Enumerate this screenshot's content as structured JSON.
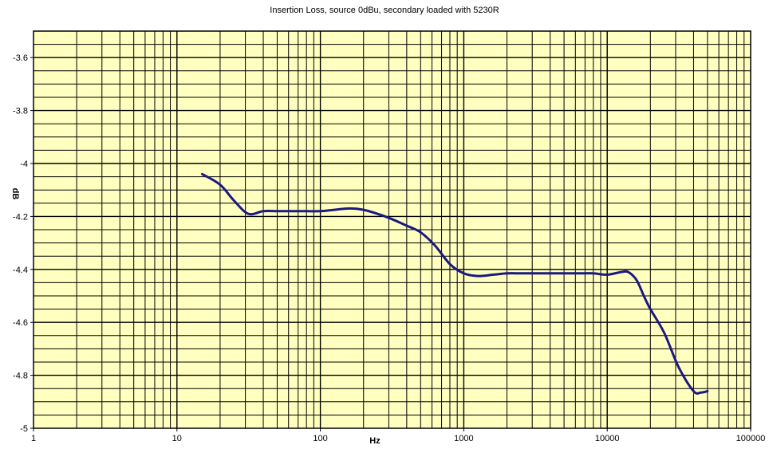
{
  "chart_data": {
    "type": "line",
    "title": "Insertion Loss, source 0dBu, secondary loaded with 5230R",
    "xlabel": "Hz",
    "ylabel": "dB",
    "x_scale": "log",
    "xlim": [
      1,
      100000
    ],
    "ylim": [
      -5,
      -3.5
    ],
    "x_ticks": [
      "1",
      "10",
      "100",
      "1000",
      "10000",
      "100000"
    ],
    "y_ticks": [
      "-5",
      "-4.8",
      "-4.6",
      "-4.4",
      "-4.2",
      "-4",
      "-3.8",
      "-3.6"
    ],
    "grid": true,
    "plot_background": "#ffffc0",
    "line_color": "#1a1a80",
    "series": [
      {
        "x": [
          15,
          20,
          25,
          31.5,
          40,
          50,
          63,
          80,
          100,
          125,
          160,
          200,
          250,
          315,
          400,
          500,
          630,
          800,
          1000,
          1250,
          1600,
          2000,
          2500,
          3150,
          4000,
          5000,
          6300,
          8000,
          10000,
          12500,
          14000,
          16000,
          18000,
          20000,
          25000,
          31500,
          40000,
          45000,
          50000
        ],
        "y": [
          -4.04,
          -4.08,
          -4.14,
          -4.19,
          -4.18,
          -4.18,
          -4.18,
          -4.18,
          -4.18,
          -4.175,
          -4.17,
          -4.175,
          -4.19,
          -4.21,
          -4.235,
          -4.26,
          -4.31,
          -4.38,
          -4.415,
          -4.425,
          -4.42,
          -4.415,
          -4.415,
          -4.415,
          -4.415,
          -4.415,
          -4.415,
          -4.415,
          -4.42,
          -4.41,
          -4.41,
          -4.44,
          -4.5,
          -4.55,
          -4.64,
          -4.77,
          -4.86,
          -4.865,
          -4.86
        ]
      }
    ]
  }
}
